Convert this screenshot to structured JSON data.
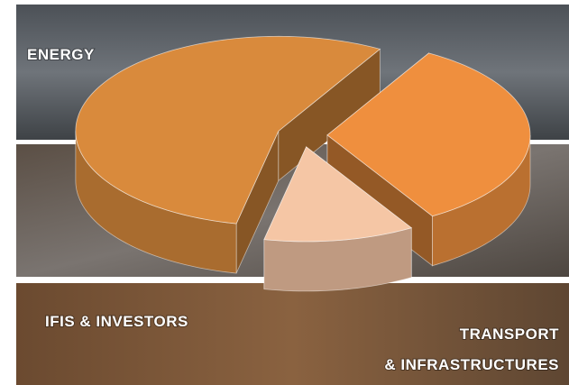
{
  "chart_data": {
    "type": "pie3d",
    "categories": [
      "ENERGY",
      "TRANSPORT & INFRASTRUCTURES",
      "IFIS & INVESTORS"
    ],
    "values": [
      55,
      33,
      12
    ],
    "colors": [
      "#d98a3c",
      "#ef8f3e",
      "#f5c6a5"
    ],
    "start_angle": 102
  }
}
